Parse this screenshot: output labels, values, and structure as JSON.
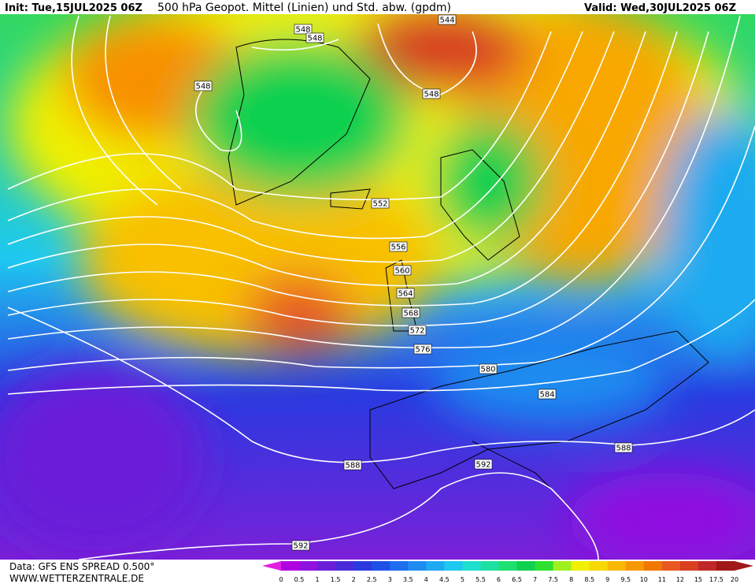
{
  "header": {
    "init": "Init: Tue,15JUL2025 06Z",
    "title": "500 hPa Geopot. Mittel (Linien) und Std. abw. (gpdm)",
    "valid": "Valid: Wed,30JUL2025 06Z"
  },
  "contour_labels": [
    548,
    548,
    548,
    544,
    548,
    552,
    556,
    560,
    564,
    568,
    572,
    576,
    580,
    584,
    588,
    588,
    592,
    592
  ],
  "footer": {
    "source": "Data: GFS ENS SPREAD 0.500°",
    "site": "WWW.WETTERZENTRALE.DE"
  },
  "legend": {
    "labels": [
      0,
      0.5,
      1,
      1.5,
      2,
      2.5,
      3,
      3.5,
      4,
      4.5,
      5,
      5.5,
      6,
      6.5,
      7,
      7.5,
      8,
      8.5,
      9,
      9.5,
      10,
      11,
      12,
      15,
      17.5,
      20
    ],
    "colors": [
      "#e020e0",
      "#b000e0",
      "#9010e0",
      "#6a1ed8",
      "#4a2ad8",
      "#2a3ae0",
      "#1e50e8",
      "#1e6ef0",
      "#1e8cf0",
      "#1eaaf0",
      "#1ec8f0",
      "#1ee0d0",
      "#1ee0a0",
      "#1ee070",
      "#10d050",
      "#30e030",
      "#a0f020",
      "#f0f000",
      "#f8d800",
      "#f8b800",
      "#f89800",
      "#f07800",
      "#e85820",
      "#d84020",
      "#c02828",
      "#a01818",
      "#a01818"
    ]
  }
}
